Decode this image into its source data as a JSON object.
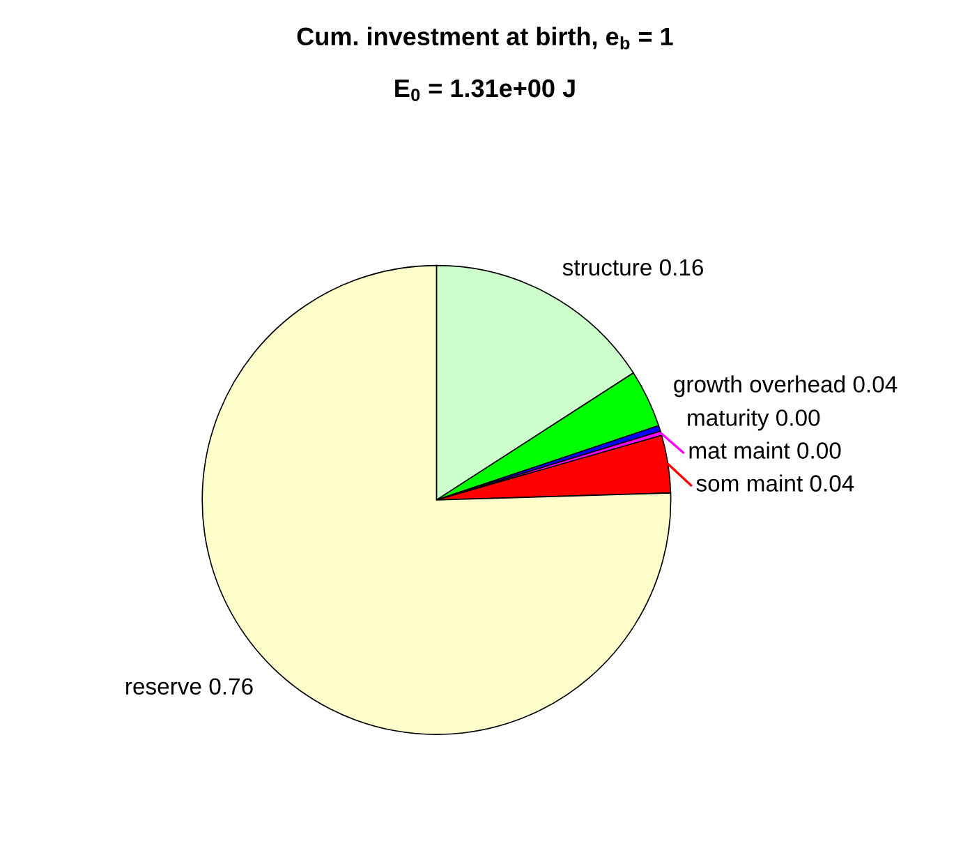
{
  "chart_data": {
    "type": "pie",
    "title": "Cum. investment at birth, e$_{b}$ = 1",
    "subtitle": "E$_{0}$ = 1.31e+00 J",
    "categories": [
      "structure",
      "growth overhead",
      "maturity",
      "mat maint",
      "som maint",
      "reserve"
    ],
    "values": [
      0.16,
      0.04,
      0.004,
      0.003,
      0.04,
      0.76
    ],
    "value_labels": [
      "0.16",
      "0.04",
      "0.00",
      "0.00",
      "0.04",
      "0.76"
    ],
    "colors": [
      "#ccffcc",
      "#00ff00",
      "#0000ff",
      "#ff00ff",
      "#ff0000",
      "#ffffcc"
    ]
  }
}
